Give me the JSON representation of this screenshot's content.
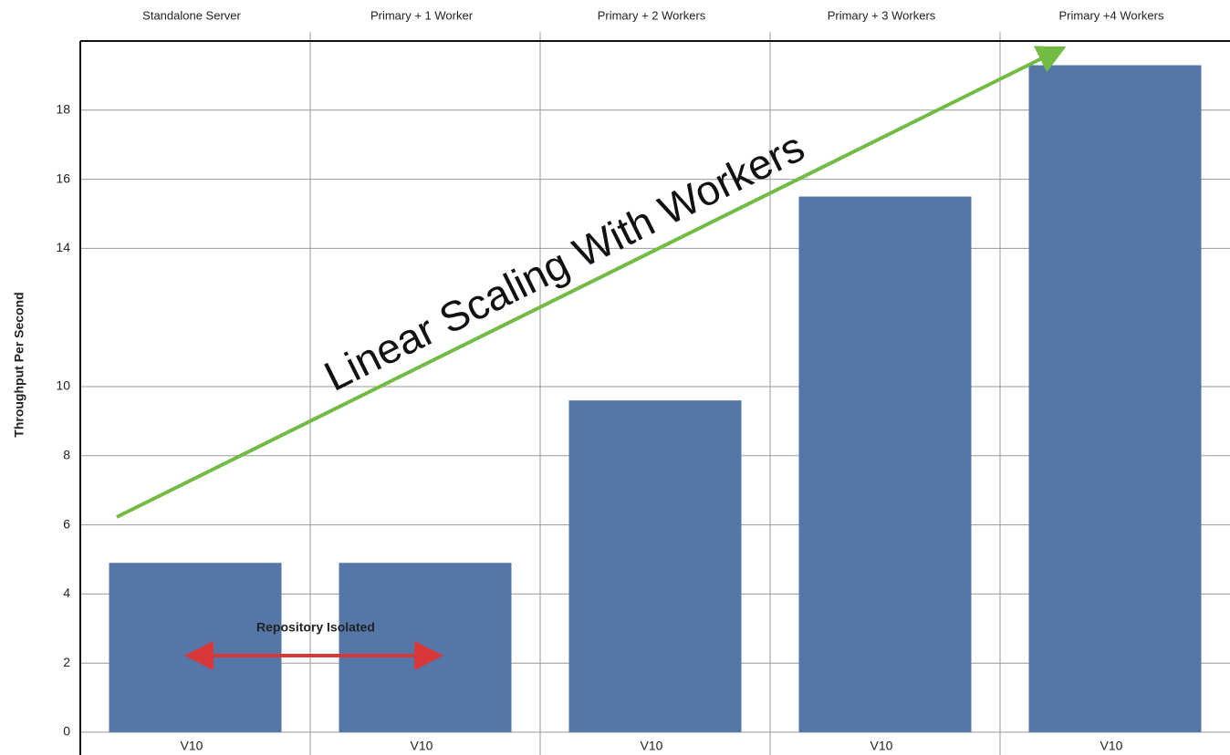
{
  "chart_data": {
    "type": "bar",
    "y_axis_label": "Throughput Per Second",
    "categories": [
      "Standalone Server",
      "Primary + 1 Worker",
      "Primary + 2 Workers",
      "Primary + 3 Workers",
      "Primary +4 Workers"
    ],
    "bar_labels": [
      "V10",
      "V10",
      "V10",
      "V10",
      "V10"
    ],
    "values": [
      4.9,
      4.9,
      9.6,
      15.5,
      19.3
    ],
    "color": "#5477a8",
    "ylim": [
      0,
      20
    ],
    "yticks": [
      0,
      2,
      4,
      6,
      8,
      10,
      14,
      16,
      18
    ],
    "grid": true,
    "annotations": {
      "trend": "Linear Scaling With Workers",
      "bracket": "Repository Isolated"
    }
  }
}
